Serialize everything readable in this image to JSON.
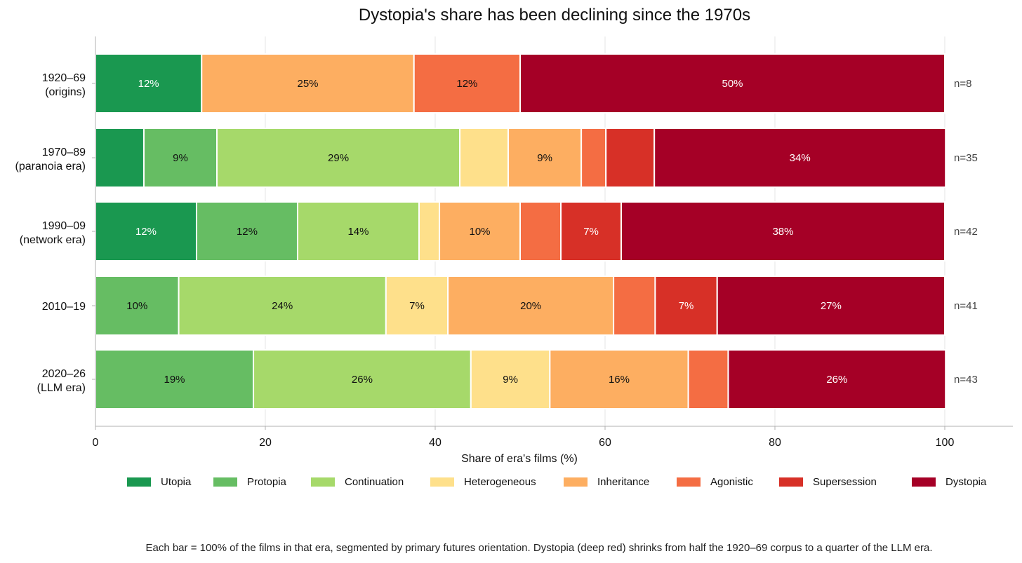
{
  "chart_data": {
    "type": "bar",
    "orientation": "horizontal",
    "stacked": true,
    "title": "Dystopia's share has been declining since the 1970s",
    "xlabel": "Share of era's films (%)",
    "ylabel": "",
    "xlim": [
      0,
      100
    ],
    "xticks": [
      0,
      20,
      40,
      60,
      80,
      100
    ],
    "grid": "vertical",
    "legend_position": "bottom",
    "categories": [
      {
        "line1": "1920–69",
        "line2": "(origins)",
        "n": "n=8"
      },
      {
        "line1": "1970–89",
        "line2": "(paranoia era)",
        "n": "n=35"
      },
      {
        "line1": "1990–09",
        "line2": "(network era)",
        "n": "n=42"
      },
      {
        "line1": "2010–19",
        "line2": "",
        "n": "n=41"
      },
      {
        "line1": "2020–26",
        "line2": "(LLM era)",
        "n": "n=43"
      }
    ],
    "series": [
      {
        "name": "Utopia",
        "color": "#1a9850",
        "label_color": "#ffffff",
        "values": [
          12.5,
          5.7,
          11.9,
          0,
          0
        ],
        "labels": [
          "12%",
          "",
          "12%",
          "",
          ""
        ]
      },
      {
        "name": "Protopia",
        "color": "#66bd63",
        "label_color": "#111111",
        "values": [
          0,
          8.6,
          11.9,
          9.8,
          18.6
        ],
        "labels": [
          "",
          "9%",
          "12%",
          "10%",
          "19%"
        ]
      },
      {
        "name": "Continuation",
        "color": "#a6d96a",
        "label_color": "#111111",
        "values": [
          0,
          28.6,
          14.3,
          24.4,
          25.6
        ],
        "labels": [
          "",
          "29%",
          "14%",
          "24%",
          "26%"
        ]
      },
      {
        "name": "Heterogeneous",
        "color": "#fee08b",
        "label_color": "#111111",
        "values": [
          0,
          5.7,
          2.4,
          7.3,
          9.3
        ],
        "labels": [
          "",
          "",
          "",
          "7%",
          "9%"
        ]
      },
      {
        "name": "Inheritance",
        "color": "#fdae61",
        "label_color": "#111111",
        "values": [
          25.0,
          8.6,
          9.5,
          19.5,
          16.3
        ],
        "labels": [
          "25%",
          "9%",
          "10%",
          "20%",
          "16%"
        ]
      },
      {
        "name": "Agonistic",
        "color": "#f46d43",
        "label_color": "#111111",
        "values": [
          12.5,
          2.9,
          4.8,
          4.9,
          4.7
        ],
        "labels": [
          "12%",
          "",
          "",
          "",
          ""
        ]
      },
      {
        "name": "Supersession",
        "color": "#d73027",
        "label_color": "#ffffff",
        "values": [
          0,
          5.7,
          7.1,
          7.3,
          0
        ],
        "labels": [
          "",
          "",
          "7%",
          "7%",
          ""
        ]
      },
      {
        "name": "Dystopia",
        "color": "#a50026",
        "label_color": "#ffffff",
        "values": [
          50.0,
          34.3,
          38.1,
          26.8,
          25.6
        ],
        "labels": [
          "50%",
          "34%",
          "38%",
          "27%",
          "26%"
        ]
      }
    ]
  },
  "caption": "Each bar = 100% of the films in that era, segmented by primary futures orientation.  Dystopia (deep red) shrinks from half the 1920–69 corpus to a quarter of the LLM era."
}
